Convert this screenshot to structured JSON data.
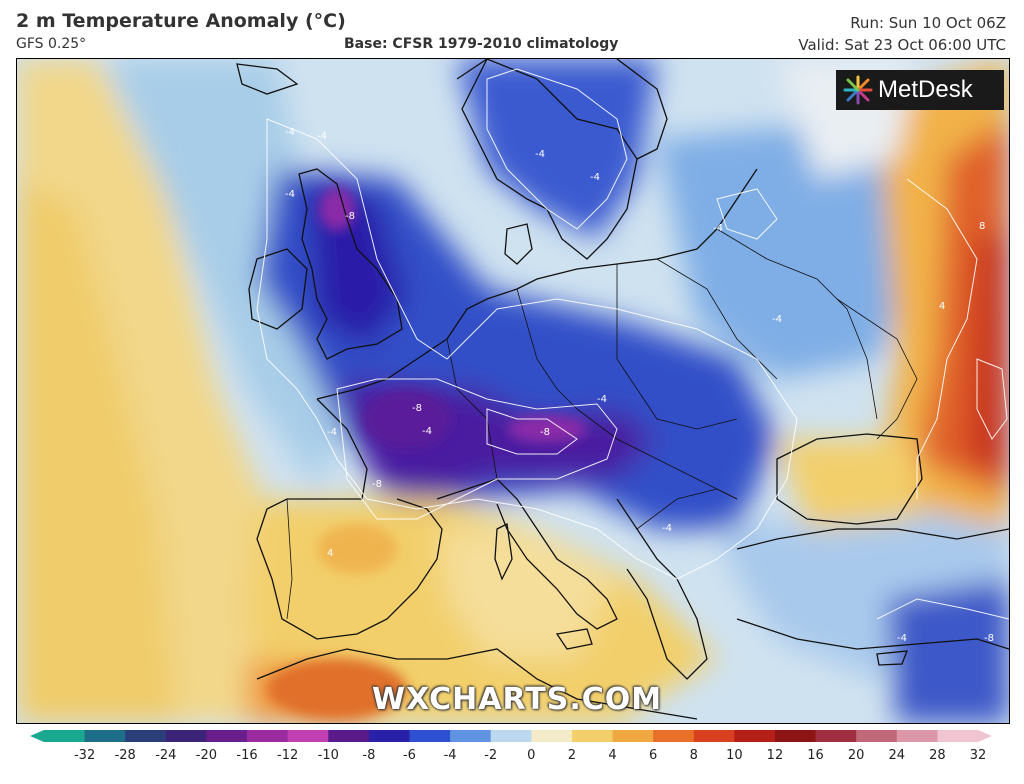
{
  "header": {
    "title": "2 m Temperature Anomaly (°C)",
    "model": "GFS 0.25°",
    "base": "Base: CFSR 1979-2010 climatology",
    "run": "Run: Sun 10 Oct 06Z",
    "valid": "Valid: Sat 23 Oct 06:00 UTC"
  },
  "logo": {
    "text": "MetDesk",
    "icon": "metdesk-starburst-icon"
  },
  "watermark": "WXCHARTS.COM",
  "contour_labels": [
    "-4",
    "-4",
    "-4",
    "-4",
    "-4",
    "-4",
    "-8",
    "-8",
    "-8",
    "-8",
    "-4",
    "-4",
    "-4",
    "-4",
    "4",
    "4",
    "8",
    "-4",
    "-4",
    "-8"
  ],
  "colorbar": {
    "ticks": [
      "-32",
      "-28",
      "-24",
      "-20",
      "-16",
      "-12",
      "-10",
      "-8",
      "-6",
      "-4",
      "-2",
      "0",
      "2",
      "4",
      "6",
      "8",
      "10",
      "12",
      "16",
      "20",
      "24",
      "28",
      "32"
    ],
    "colors": [
      "#1aa890",
      "#1e6e8a",
      "#2a3f7a",
      "#3b2478",
      "#6a1e8c",
      "#9a2aa0",
      "#c040b0",
      "#5a1a8a",
      "#2a1fa8",
      "#2e4fd0",
      "#5f92e0",
      "#bcd8ee",
      "#f4ecc8",
      "#f3cf6c",
      "#f0a840",
      "#e8702a",
      "#d84020",
      "#b42018",
      "#8c1414",
      "#a03040",
      "#c06878",
      "#dc98a8",
      "#f0c4d0"
    ]
  }
}
